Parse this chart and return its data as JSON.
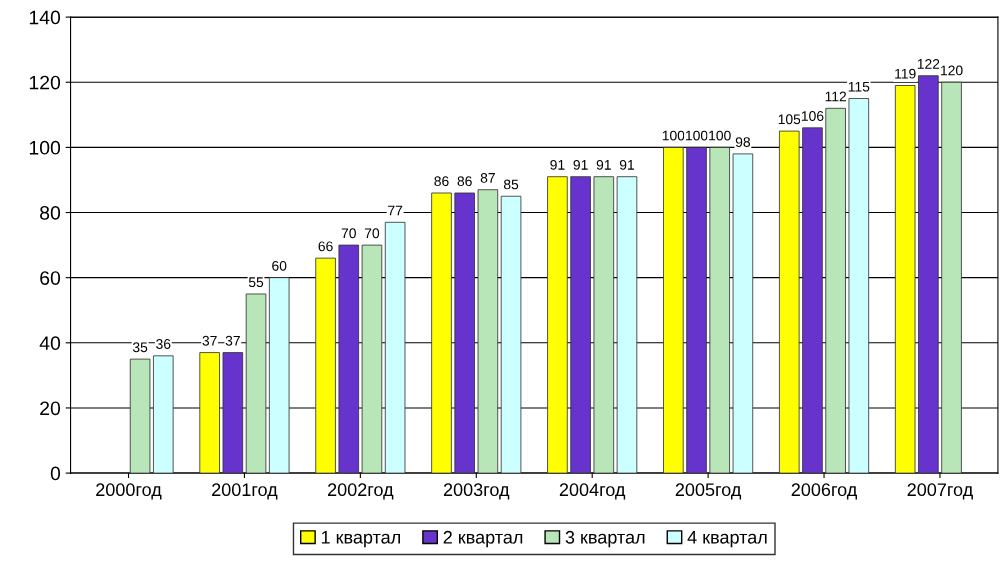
{
  "chart_data": {
    "type": "bar",
    "categories": [
      "2000год",
      "2001год",
      "2002год",
      "2003год",
      "2004год",
      "2005год",
      "2006год",
      "2007год"
    ],
    "series": [
      {
        "name": "1 квартал",
        "color": "#ffff00",
        "values": [
          null,
          37,
          66,
          86,
          91,
          100,
          105,
          119
        ]
      },
      {
        "name": "2 квартал",
        "color": "#6633cc",
        "values": [
          null,
          37,
          70,
          86,
          91,
          100,
          106,
          122
        ]
      },
      {
        "name": "3 квартал",
        "color": "#b8e6b8",
        "values": [
          35,
          55,
          70,
          87,
          91,
          100,
          112,
          120
        ]
      },
      {
        "name": "4 квартал",
        "color": "#ccffff",
        "values": [
          36,
          60,
          77,
          85,
          91,
          98,
          115,
          null
        ]
      }
    ],
    "ylim": [
      0,
      140
    ],
    "yticks": [
      0,
      20,
      40,
      60,
      80,
      100,
      120,
      140
    ],
    "grid": "y",
    "legend": "bottom",
    "data_labels": true
  }
}
